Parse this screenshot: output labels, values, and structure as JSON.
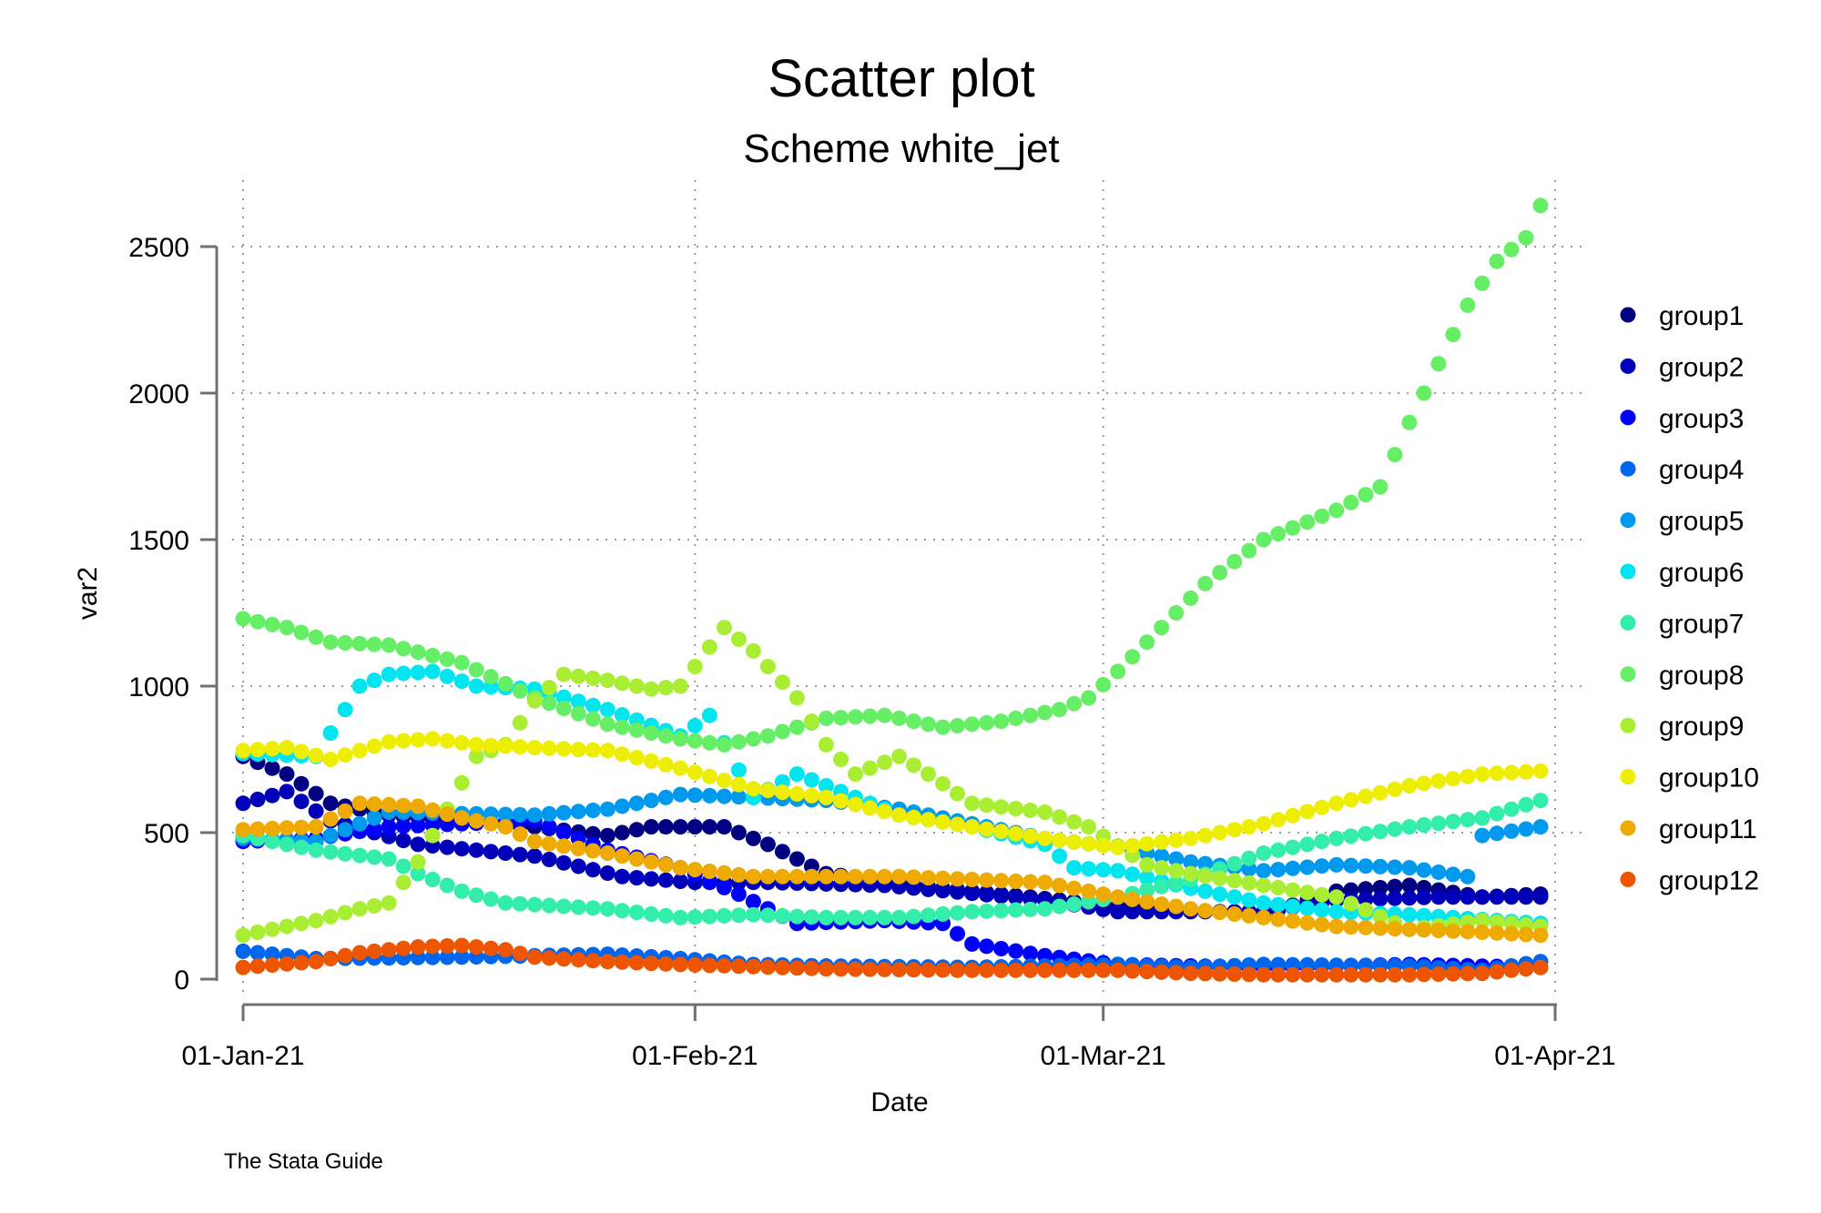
{
  "chart_data": {
    "type": "scatter",
    "title": "Scatter plot",
    "subtitle": "Scheme white_jet",
    "xlabel": "Date",
    "ylabel": "var2",
    "note": "The Stata Guide",
    "xlim": [
      0,
      90
    ],
    "ylim": [
      0,
      2650
    ],
    "x_ticks": [
      {
        "value": 0,
        "label": "01-Jan-21"
      },
      {
        "value": 31,
        "label": "01-Feb-21"
      },
      {
        "value": 59,
        "label": "01-Mar-21"
      },
      {
        "value": 90,
        "label": "01-Apr-21"
      }
    ],
    "y_ticks": [
      {
        "value": 0,
        "label": "0"
      },
      {
        "value": 500,
        "label": "500"
      },
      {
        "value": 1000,
        "label": "1000"
      },
      {
        "value": 1500,
        "label": "1500"
      },
      {
        "value": 2000,
        "label": "2000"
      },
      {
        "value": 2500,
        "label": "2500"
      }
    ],
    "grid": true,
    "legend_position": "right",
    "x_days": 90,
    "series": [
      {
        "name": "group1",
        "color": "#000080",
        "anchors": [
          [
            0,
            760
          ],
          [
            3,
            700
          ],
          [
            6,
            600
          ],
          [
            10,
            560
          ],
          [
            20,
            520
          ],
          [
            25,
            490
          ],
          [
            28,
            520
          ],
          [
            33,
            520
          ],
          [
            36,
            460
          ],
          [
            40,
            360
          ],
          [
            48,
            310
          ],
          [
            60,
            250
          ],
          [
            70,
            220
          ],
          [
            75,
            300
          ],
          [
            80,
            320
          ],
          [
            85,
            280
          ],
          [
            89,
            290
          ]
        ]
      },
      {
        "name": "group2",
        "color": "#0000b8",
        "anchors": [
          [
            0,
            600
          ],
          [
            3,
            640
          ],
          [
            6,
            540
          ],
          [
            12,
            460
          ],
          [
            20,
            420
          ],
          [
            26,
            350
          ],
          [
            31,
            330
          ],
          [
            36,
            330
          ],
          [
            44,
            320
          ],
          [
            55,
            270
          ],
          [
            60,
            230
          ],
          [
            70,
            230
          ],
          [
            75,
            270
          ],
          [
            82,
            280
          ],
          [
            89,
            280
          ]
        ]
      },
      {
        "name": "group3",
        "color": "#0000ff",
        "anchors": [
          [
            0,
            470
          ],
          [
            5,
            480
          ],
          [
            10,
            520
          ],
          [
            15,
            530
          ],
          [
            20,
            540
          ],
          [
            25,
            440
          ],
          [
            30,
            380
          ],
          [
            34,
            290
          ],
          [
            38,
            190
          ],
          [
            44,
            200
          ],
          [
            48,
            190
          ],
          [
            50,
            120
          ],
          [
            55,
            80
          ],
          [
            60,
            50
          ],
          [
            70,
            40
          ],
          [
            80,
            50
          ],
          [
            89,
            40
          ]
        ]
      },
      {
        "name": "group4",
        "color": "#0066ee",
        "anchors": [
          [
            0,
            95
          ],
          [
            5,
            70
          ],
          [
            15,
            75
          ],
          [
            25,
            85
          ],
          [
            30,
            70
          ],
          [
            35,
            50
          ],
          [
            40,
            45
          ],
          [
            50,
            40
          ],
          [
            60,
            50
          ],
          [
            65,
            40
          ],
          [
            70,
            50
          ],
          [
            80,
            45
          ],
          [
            85,
            30
          ],
          [
            89,
            60
          ]
        ]
      },
      {
        "name": "group5",
        "color": "#0099ee",
        "anchors": [
          [
            0,
            480
          ],
          [
            5,
            470
          ],
          [
            10,
            570
          ],
          [
            20,
            560
          ],
          [
            25,
            580
          ],
          [
            30,
            630
          ],
          [
            35,
            620
          ],
          [
            40,
            610
          ],
          [
            45,
            580
          ],
          [
            50,
            530
          ],
          [
            55,
            480
          ],
          [
            60,
            450
          ],
          [
            65,
            400
          ],
          [
            70,
            370
          ],
          [
            75,
            390
          ],
          [
            80,
            380
          ],
          [
            84,
            350
          ],
          [
            85,
            490
          ],
          [
            89,
            520
          ]
        ]
      },
      {
        "name": "group6",
        "color": "#00e5ee",
        "anchors": [
          [
            0,
            770
          ],
          [
            5,
            760
          ],
          [
            8,
            1000
          ],
          [
            10,
            1040
          ],
          [
            13,
            1050
          ],
          [
            16,
            1000
          ],
          [
            20,
            990
          ],
          [
            25,
            920
          ],
          [
            30,
            830
          ],
          [
            32,
            900
          ],
          [
            35,
            620
          ],
          [
            38,
            700
          ],
          [
            40,
            660
          ],
          [
            45,
            560
          ],
          [
            50,
            520
          ],
          [
            55,
            460
          ],
          [
            57,
            380
          ],
          [
            60,
            370
          ],
          [
            65,
            310
          ],
          [
            70,
            260
          ],
          [
            75,
            230
          ],
          [
            80,
            220
          ],
          [
            89,
            190
          ]
        ]
      },
      {
        "name": "group7",
        "color": "#33eeaa",
        "anchors": [
          [
            0,
            490
          ],
          [
            5,
            440
          ],
          [
            10,
            410
          ],
          [
            12,
            360
          ],
          [
            15,
            300
          ],
          [
            18,
            260
          ],
          [
            25,
            240
          ],
          [
            30,
            210
          ],
          [
            35,
            220
          ],
          [
            40,
            210
          ],
          [
            45,
            210
          ],
          [
            50,
            230
          ],
          [
            55,
            240
          ],
          [
            60,
            280
          ],
          [
            65,
            340
          ],
          [
            70,
            430
          ],
          [
            75,
            480
          ],
          [
            80,
            520
          ],
          [
            85,
            550
          ],
          [
            89,
            610
          ]
        ]
      },
      {
        "name": "group8",
        "color": "#66ee66",
        "anchors": [
          [
            0,
            1230
          ],
          [
            3,
            1200
          ],
          [
            6,
            1150
          ],
          [
            10,
            1140
          ],
          [
            15,
            1080
          ],
          [
            20,
            960
          ],
          [
            25,
            870
          ],
          [
            30,
            820
          ],
          [
            33,
            800
          ],
          [
            36,
            830
          ],
          [
            40,
            890
          ],
          [
            44,
            900
          ],
          [
            48,
            860
          ],
          [
            52,
            880
          ],
          [
            56,
            920
          ],
          [
            58,
            960
          ],
          [
            60,
            1050
          ],
          [
            63,
            1200
          ],
          [
            66,
            1350
          ],
          [
            70,
            1500
          ],
          [
            75,
            1600
          ],
          [
            78,
            1680
          ],
          [
            80,
            1900
          ],
          [
            82,
            2100
          ],
          [
            84,
            2300
          ],
          [
            86,
            2450
          ],
          [
            88,
            2530
          ],
          [
            89,
            2640
          ]
        ]
      },
      {
        "name": "group9",
        "color": "#aaee33",
        "anchors": [
          [
            0,
            150
          ],
          [
            5,
            200
          ],
          [
            8,
            240
          ],
          [
            10,
            260
          ],
          [
            12,
            400
          ],
          [
            16,
            760
          ],
          [
            18,
            800
          ],
          [
            20,
            950
          ],
          [
            22,
            1040
          ],
          [
            25,
            1020
          ],
          [
            28,
            990
          ],
          [
            30,
            1000
          ],
          [
            33,
            1200
          ],
          [
            35,
            1120
          ],
          [
            38,
            960
          ],
          [
            40,
            800
          ],
          [
            42,
            700
          ],
          [
            45,
            760
          ],
          [
            47,
            700
          ],
          [
            50,
            600
          ],
          [
            55,
            570
          ],
          [
            58,
            520
          ],
          [
            62,
            390
          ],
          [
            65,
            360
          ],
          [
            70,
            320
          ],
          [
            75,
            280
          ],
          [
            80,
            170
          ],
          [
            85,
            200
          ],
          [
            89,
            180
          ]
        ]
      },
      {
        "name": "group10",
        "color": "#eeee00",
        "anchors": [
          [
            0,
            780
          ],
          [
            3,
            790
          ],
          [
            6,
            750
          ],
          [
            10,
            810
          ],
          [
            13,
            820
          ],
          [
            16,
            800
          ],
          [
            20,
            790
          ],
          [
            25,
            780
          ],
          [
            30,
            720
          ],
          [
            35,
            650
          ],
          [
            40,
            620
          ],
          [
            45,
            560
          ],
          [
            50,
            520
          ],
          [
            55,
            480
          ],
          [
            60,
            450
          ],
          [
            65,
            480
          ],
          [
            70,
            530
          ],
          [
            75,
            600
          ],
          [
            80,
            660
          ],
          [
            85,
            700
          ],
          [
            89,
            710
          ]
        ]
      },
      {
        "name": "group11",
        "color": "#eeaa00",
        "anchors": [
          [
            0,
            510
          ],
          [
            5,
            520
          ],
          [
            8,
            600
          ],
          [
            12,
            590
          ],
          [
            15,
            550
          ],
          [
            18,
            520
          ],
          [
            20,
            470
          ],
          [
            25,
            430
          ],
          [
            30,
            380
          ],
          [
            35,
            350
          ],
          [
            40,
            350
          ],
          [
            45,
            350
          ],
          [
            50,
            340
          ],
          [
            55,
            330
          ],
          [
            58,
            300
          ],
          [
            60,
            280
          ],
          [
            65,
            240
          ],
          [
            70,
            210
          ],
          [
            75,
            180
          ],
          [
            80,
            170
          ],
          [
            85,
            160
          ],
          [
            89,
            150
          ]
        ]
      },
      {
        "name": "group12",
        "color": "#ee5500",
        "anchors": [
          [
            0,
            40
          ],
          [
            5,
            60
          ],
          [
            8,
            90
          ],
          [
            12,
            110
          ],
          [
            15,
            115
          ],
          [
            18,
            100
          ],
          [
            20,
            75
          ],
          [
            25,
            60
          ],
          [
            30,
            50
          ],
          [
            40,
            35
          ],
          [
            50,
            30
          ],
          [
            60,
            30
          ],
          [
            65,
            20
          ],
          [
            70,
            15
          ],
          [
            80,
            15
          ],
          [
            85,
            20
          ],
          [
            89,
            40
          ]
        ]
      }
    ]
  }
}
